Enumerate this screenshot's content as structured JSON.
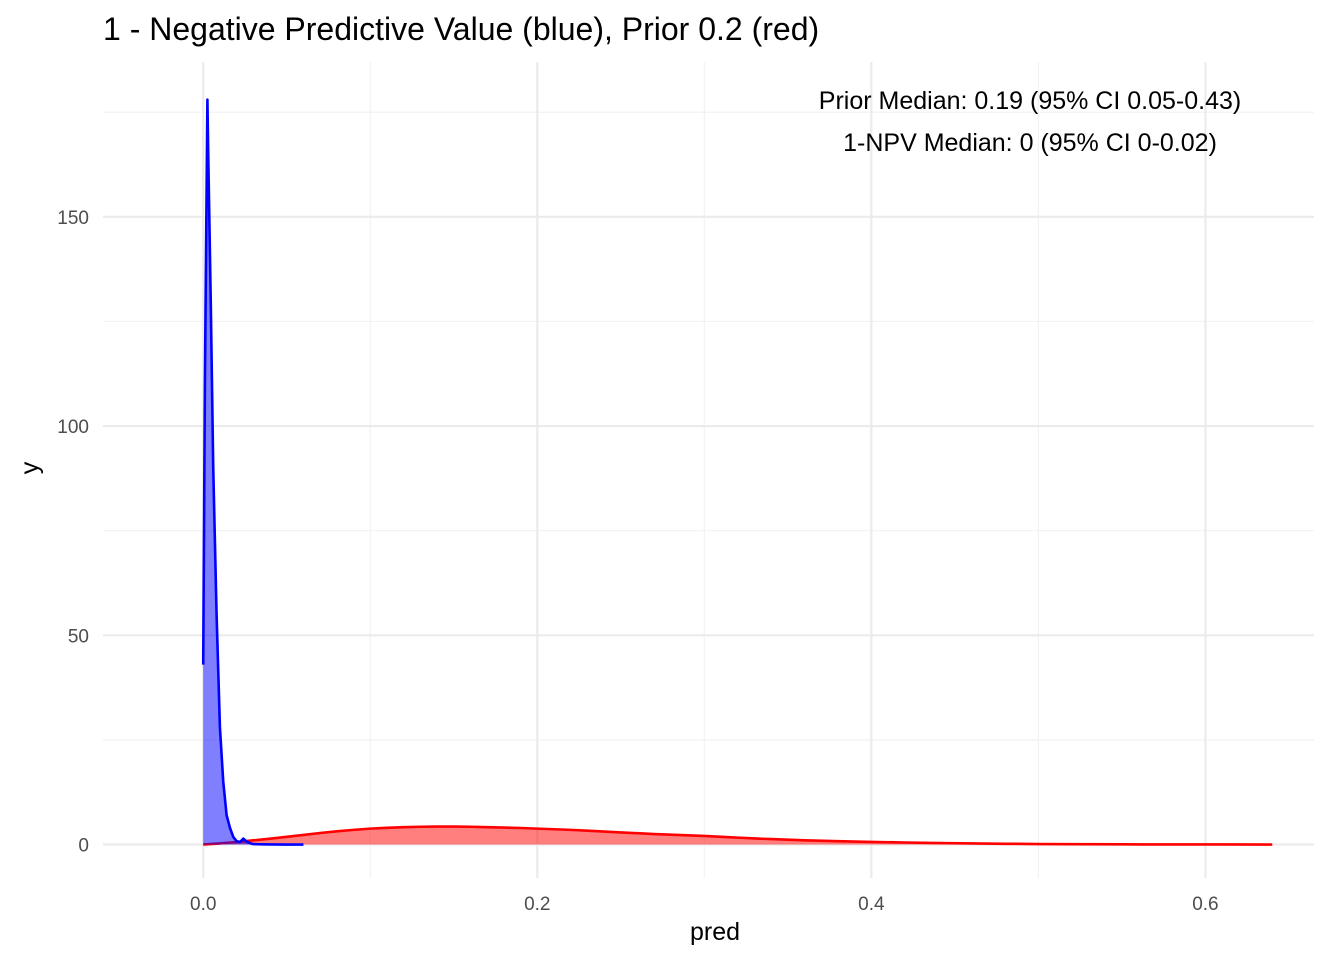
{
  "chart_data": {
    "type": "area",
    "title": "1 - Negative Predictive Value (blue), Prior 0.2 (red)",
    "xlabel": "pred",
    "ylabel": "y",
    "xlim": [
      -0.06,
      0.665
    ],
    "ylim": [
      -8,
      187
    ],
    "x_ticks": [
      0.0,
      0.2,
      0.4,
      0.6
    ],
    "x_tick_labels": [
      "0.0",
      "0.2",
      "0.4",
      "0.6"
    ],
    "x_minor_ticks": [
      0.1,
      0.3,
      0.5
    ],
    "y_ticks": [
      0,
      50,
      100,
      150
    ],
    "y_tick_labels": [
      "0",
      "50",
      "100",
      "150"
    ],
    "y_minor_ticks": [
      25,
      75,
      125,
      175
    ],
    "grid": true,
    "legend": "none",
    "annotations": [
      "Prior Median: 0.19 (95% CI 0.05-0.43)",
      "1-NPV Median: 0 (95% CI 0-0.02)"
    ],
    "series": [
      {
        "color": "#ff0000",
        "fill": "#ff0000",
        "fill_opacity": 0.5,
        "x": [
          0.0,
          0.01,
          0.02,
          0.03,
          0.04,
          0.05,
          0.06,
          0.07,
          0.08,
          0.09,
          0.1,
          0.11,
          0.12,
          0.13,
          0.14,
          0.15,
          0.16,
          0.17,
          0.18,
          0.19,
          0.2,
          0.21,
          0.22,
          0.23,
          0.24,
          0.25,
          0.26,
          0.27,
          0.28,
          0.29,
          0.3,
          0.31,
          0.32,
          0.33,
          0.34,
          0.35,
          0.36,
          0.38,
          0.4,
          0.42,
          0.44,
          0.46,
          0.48,
          0.5,
          0.52,
          0.55,
          0.58,
          0.61,
          0.64
        ],
        "y": [
          0.0,
          0.25,
          0.6,
          1.0,
          1.4,
          1.85,
          2.3,
          2.75,
          3.15,
          3.5,
          3.8,
          4.0,
          4.15,
          4.25,
          4.3,
          4.3,
          4.25,
          4.15,
          4.05,
          3.95,
          3.8,
          3.65,
          3.5,
          3.3,
          3.1,
          2.9,
          2.7,
          2.5,
          2.35,
          2.2,
          2.05,
          1.85,
          1.65,
          1.45,
          1.3,
          1.15,
          1.0,
          0.8,
          0.62,
          0.48,
          0.36,
          0.26,
          0.18,
          0.12,
          0.08,
          0.04,
          0.02,
          0.01,
          0.0
        ]
      },
      {
        "color": "#0000ff",
        "fill": "#0000ff",
        "fill_opacity": 0.5,
        "x": [
          0.0,
          0.001,
          0.0025,
          0.003,
          0.0045,
          0.006,
          0.008,
          0.01,
          0.012,
          0.014,
          0.016,
          0.018,
          0.02,
          0.022,
          0.024,
          0.026,
          0.028,
          0.03,
          0.035,
          0.04,
          0.05,
          0.06
        ],
        "y": [
          43.0,
          110.0,
          178.0,
          165.0,
          130.0,
          90.0,
          55.0,
          28.0,
          15.0,
          7.0,
          4.0,
          1.8,
          0.8,
          0.6,
          1.4,
          0.7,
          0.3,
          0.1,
          0.05,
          0.02,
          0.0,
          0.0
        ]
      }
    ]
  }
}
